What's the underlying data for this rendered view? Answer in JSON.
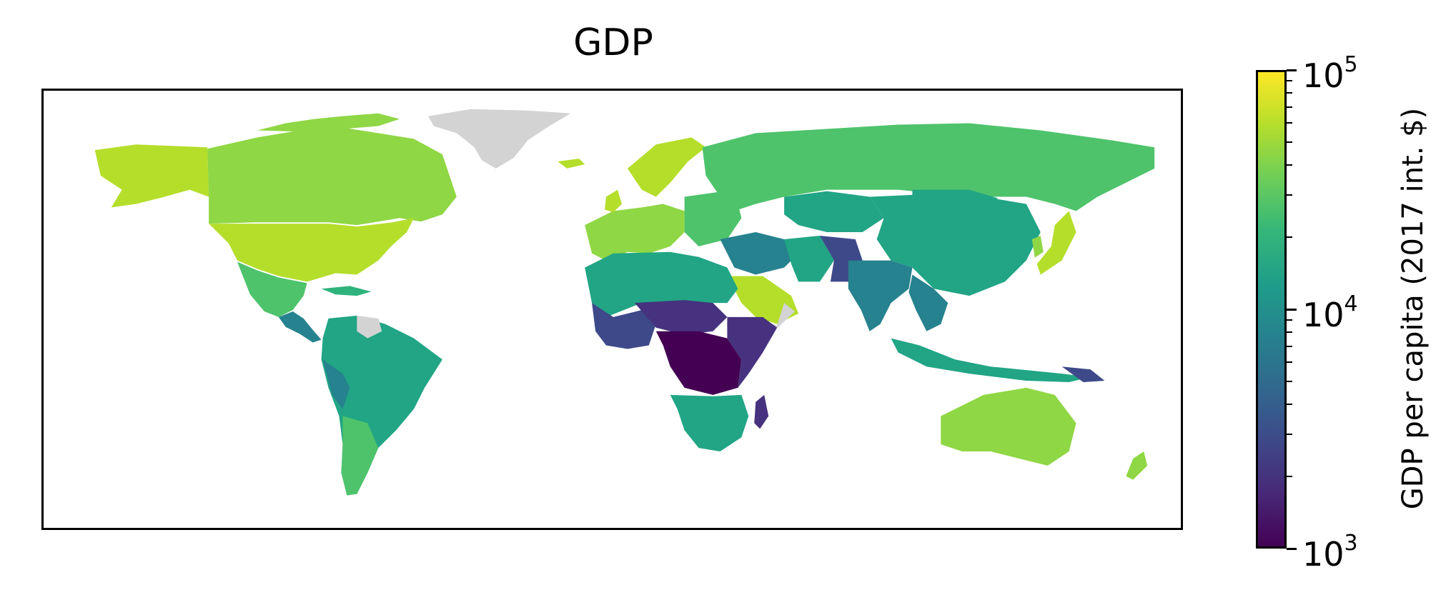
{
  "title": "GDP",
  "colorbar": {
    "label": "GDP per capita (2017 int. $)",
    "scale": "log",
    "range": [
      1000,
      100000
    ],
    "major_ticks": [
      {
        "base": "10",
        "exponent": "3",
        "value": 1000
      },
      {
        "base": "10",
        "exponent": "4",
        "value": 10000
      },
      {
        "base": "10",
        "exponent": "5",
        "value": 100000
      }
    ],
    "colormap": "viridis",
    "no_data_color": "#d3d3d3"
  },
  "palette": {
    "high": "#b5de2b",
    "upper": "#8fd744",
    "mid_high": "#4ec36b",
    "mid": "#2eb37c",
    "mid_low": "#21a585",
    "low_mid": "#26828e",
    "low": "#3e4989",
    "very_low": "#46327e",
    "lowest": "#440154",
    "no_data": "#d3d3d3"
  }
}
